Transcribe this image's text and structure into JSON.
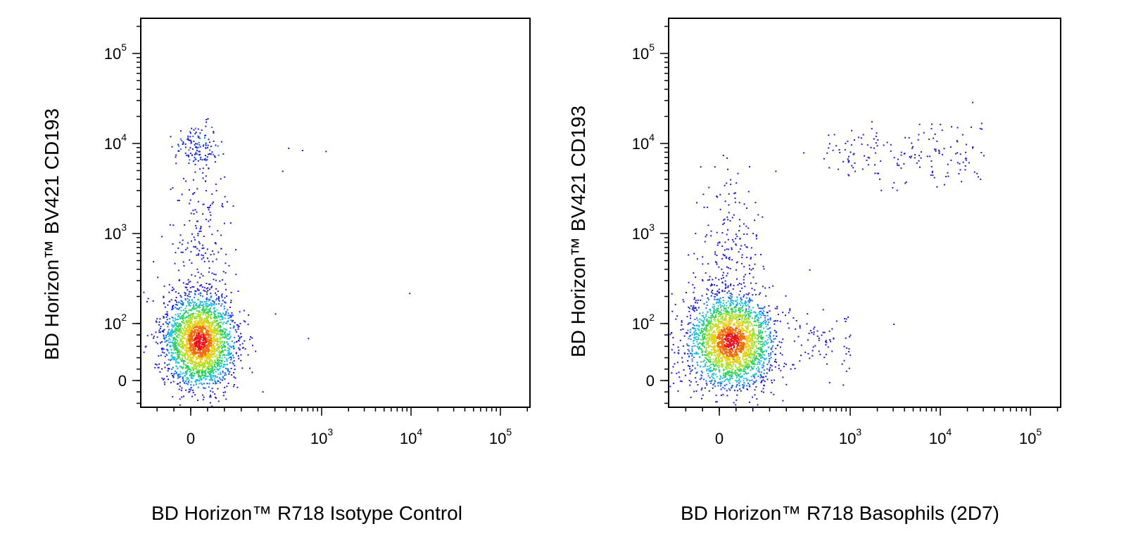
{
  "chart_data": [
    {
      "type": "scatter",
      "subtype": "flow-cytometry-density-dot-plot",
      "xlabel": "BD Horizon™ R718 Isotype Control",
      "ylabel": "BD Horizon™ BV421 CD193",
      "x_scale": "biexponential",
      "y_scale": "biexponential",
      "xlim": [
        -100,
        200000
      ],
      "ylim": [
        -50,
        250000
      ],
      "x_ticks": [
        {
          "value": 0,
          "base": "0",
          "exp": ""
        },
        {
          "value": 1000,
          "base": "10",
          "exp": "3"
        },
        {
          "value": 10000,
          "base": "10",
          "exp": "4"
        },
        {
          "value": 100000,
          "base": "10",
          "exp": "5"
        }
      ],
      "y_ticks": [
        {
          "value": 0,
          "base": "0",
          "exp": ""
        },
        {
          "value": 100,
          "base": "10",
          "exp": "2"
        },
        {
          "value": 1000,
          "base": "10",
          "exp": "3"
        },
        {
          "value": 10000,
          "base": "10",
          "exp": "4"
        },
        {
          "value": 100000,
          "base": "10",
          "exp": "5"
        }
      ],
      "populations": [
        {
          "center": [
            30,
            70
          ],
          "spread_x": 45,
          "spread_y": 60,
          "count": 2600,
          "shape": "main"
        },
        {
          "center": [
            25,
            9000
          ],
          "spread_x": 25,
          "spread_y": 0.14,
          "count": 130,
          "shape": "upper-cluster"
        },
        {
          "center": [
            30,
            800
          ],
          "spread_x": 35,
          "spread_y": 0.45,
          "count": 180,
          "shape": "tail"
        }
      ],
      "outliers": [
        [
          420,
          9000
        ],
        [
          600,
          8500
        ],
        [
          1100,
          8300
        ],
        [
          360,
          5000
        ],
        [
          9500,
          220
        ],
        [
          300,
          130
        ],
        [
          700,
          75
        ]
      ],
      "grid": false,
      "legend": "none"
    },
    {
      "type": "scatter",
      "subtype": "flow-cytometry-density-dot-plot",
      "xlabel": "BD Horizon™ R718 Basophils (2D7)",
      "ylabel": "BD Horizon™ BV421 CD193",
      "x_scale": "biexponential",
      "y_scale": "biexponential",
      "xlim": [
        -100,
        200000
      ],
      "ylim": [
        -50,
        250000
      ],
      "x_ticks": [
        {
          "value": 0,
          "base": "0",
          "exp": ""
        },
        {
          "value": 1000,
          "base": "10",
          "exp": "3"
        },
        {
          "value": 10000,
          "base": "10",
          "exp": "4"
        },
        {
          "value": 100000,
          "base": "10",
          "exp": "5"
        }
      ],
      "y_ticks": [
        {
          "value": 0,
          "base": "0",
          "exp": ""
        },
        {
          "value": 100,
          "base": "10",
          "exp": "2"
        },
        {
          "value": 1000,
          "base": "10",
          "exp": "3"
        },
        {
          "value": 10000,
          "base": "10",
          "exp": "4"
        },
        {
          "value": 100000,
          "base": "10",
          "exp": "5"
        }
      ],
      "populations": [
        {
          "center": [
            40,
            70
          ],
          "spread_x": 55,
          "spread_y": 60,
          "count": 2600,
          "shape": "main"
        },
        {
          "center": [
            40,
            800
          ],
          "spread_x": 40,
          "spread_y": 0.45,
          "count": 170,
          "shape": "tail"
        },
        {
          "range_x": [
            500,
            30000
          ],
          "center_y": 7500,
          "spread_y": 0.17,
          "count": 170,
          "shape": "basophil-band"
        },
        {
          "range_x": [
            250,
            1000
          ],
          "center_y": 70,
          "spread_y": 0.3,
          "count": 70,
          "shape": "side-scatter"
        }
      ],
      "outliers": [
        [
          3000,
          100
        ],
        [
          800,
          30
        ],
        [
          300,
          8000
        ],
        [
          200,
          5000
        ],
        [
          350,
          400
        ]
      ],
      "grid": false,
      "legend": "none"
    }
  ]
}
